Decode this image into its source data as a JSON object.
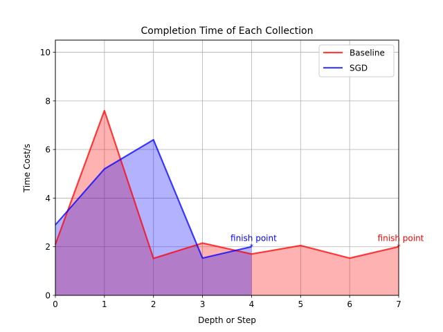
{
  "chart_data": {
    "type": "area",
    "title": "Completion Time of Each Collection",
    "xlabel": "Depth or Step",
    "ylabel": "Time Cost/s",
    "xlim": [
      0,
      7
    ],
    "ylim": [
      0,
      10.5
    ],
    "xticks": [
      0,
      1,
      2,
      3,
      4,
      5,
      6,
      7
    ],
    "yticks": [
      0,
      2,
      4,
      6,
      8,
      10
    ],
    "grid": true,
    "legend_position": "top-right",
    "series": [
      {
        "name": "Baseline",
        "color": "#ff0000",
        "fill_color": "#ff0000",
        "x": [
          0,
          1,
          2,
          3,
          4,
          5,
          6,
          7
        ],
        "values": [
          2.1,
          7.6,
          1.52,
          2.15,
          1.7,
          2.05,
          1.53,
          2.0
        ]
      },
      {
        "name": "SGD",
        "color": "#0000ff",
        "fill_color": "#0000ff",
        "x": [
          0,
          1,
          2,
          3,
          4
        ],
        "values": [
          2.9,
          5.2,
          6.4,
          1.53,
          2.0
        ]
      }
    ],
    "annotations": [
      {
        "text": "finish point",
        "x": 4,
        "y": 2.0,
        "color": "#0000ff"
      },
      {
        "text": "finish point",
        "x": 7,
        "y": 2.0,
        "color": "#ff0000"
      }
    ]
  }
}
